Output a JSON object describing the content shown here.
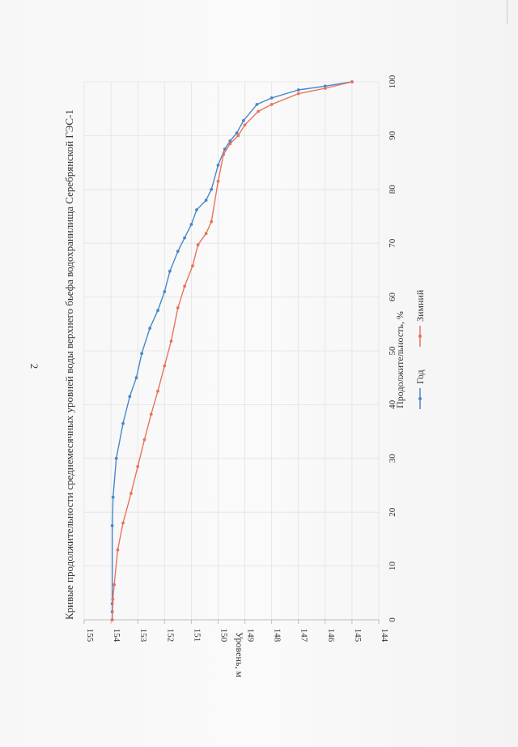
{
  "page": {
    "number": "2"
  },
  "colors": {
    "year": "#4a86cc",
    "winter": "#e8735a",
    "grid": "#e2e2e2",
    "axis": "#bdbdbd",
    "text": "#333333"
  },
  "chart_data": {
    "type": "line",
    "orientation": "rotated 90 degrees clockwise",
    "title": "Кривые продолжительности среднемесячных уровней воды верхнего бьефа водохранилища Серебрянской ГЭС-1",
    "xlabel": "Продолжительность, %",
    "ylabel": "Уровень, м",
    "xlim": [
      0,
      100
    ],
    "ylim": [
      144,
      155
    ],
    "x_ticks": [
      "0",
      "10",
      "20",
      "30",
      "40",
      "50",
      "60",
      "70",
      "80",
      "90",
      "100"
    ],
    "y_ticks": [
      "155",
      "154",
      "153",
      "152",
      "151",
      "150",
      "149",
      "148",
      "147",
      "146",
      "145",
      "144"
    ],
    "legend_position": "right of x-axis title",
    "series": [
      {
        "name": "Год",
        "color": "#4a86cc",
        "points": [
          [
            0,
            153.95
          ],
          [
            1.5,
            153.95
          ],
          [
            3,
            153.95
          ],
          [
            17.5,
            153.95
          ],
          [
            22.8,
            153.92
          ],
          [
            30,
            153.8
          ],
          [
            36.5,
            153.55
          ],
          [
            41.5,
            153.3
          ],
          [
            45,
            153.05
          ],
          [
            49.5,
            152.85
          ],
          [
            54.2,
            152.55
          ],
          [
            57.5,
            152.25
          ],
          [
            61,
            152.0
          ],
          [
            64.8,
            151.8
          ],
          [
            68.5,
            151.5
          ],
          [
            71,
            151.25
          ],
          [
            73.5,
            151.0
          ],
          [
            76.2,
            150.8
          ],
          [
            78,
            150.45
          ],
          [
            80,
            150.25
          ],
          [
            84.5,
            150.0
          ],
          [
            87.5,
            149.75
          ],
          [
            89,
            149.55
          ],
          [
            90.5,
            149.3
          ],
          [
            92.8,
            149.05
          ],
          [
            95.8,
            148.55
          ],
          [
            97,
            148.0
          ],
          [
            98.5,
            147.0
          ],
          [
            99.2,
            146.0
          ],
          [
            100,
            145.0
          ]
        ]
      },
      {
        "name": "Зимний",
        "color": "#e8735a",
        "points": [
          [
            0,
            153.95
          ],
          [
            3.8,
            153.93
          ],
          [
            6.5,
            153.88
          ],
          [
            13,
            153.75
          ],
          [
            18,
            153.55
          ],
          [
            23.5,
            153.25
          ],
          [
            28.5,
            153.0
          ],
          [
            33.5,
            152.75
          ],
          [
            38.2,
            152.5
          ],
          [
            42.5,
            152.25
          ],
          [
            47.2,
            152.0
          ],
          [
            51.8,
            151.75
          ],
          [
            58,
            151.5
          ],
          [
            62,
            151.25
          ],
          [
            65.8,
            150.95
          ],
          [
            69.7,
            150.75
          ],
          [
            71.8,
            150.45
          ],
          [
            74,
            150.25
          ],
          [
            81.5,
            150.0
          ],
          [
            86.5,
            149.8
          ],
          [
            88.5,
            149.55
          ],
          [
            90,
            149.25
          ],
          [
            92,
            149.0
          ],
          [
            94.5,
            148.5
          ],
          [
            95.8,
            148.0
          ],
          [
            97.8,
            147.0
          ],
          [
            98.8,
            146.0
          ],
          [
            100,
            145.0
          ]
        ]
      }
    ]
  }
}
